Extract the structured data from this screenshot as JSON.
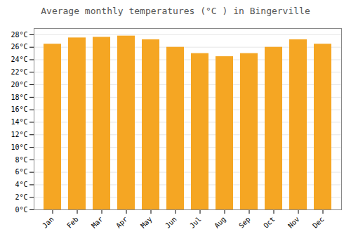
{
  "chart_data": {
    "type": "bar",
    "title": "Average monthly temperatures (°C ) in Bingerville",
    "categories": [
      "Jan",
      "Feb",
      "Mar",
      "Apr",
      "May",
      "Jun",
      "Jul",
      "Aug",
      "Sep",
      "Oct",
      "Nov",
      "Dec"
    ],
    "values": [
      26.5,
      27.5,
      27.6,
      27.8,
      27.2,
      26.0,
      25.0,
      24.5,
      25.0,
      26.0,
      27.2,
      26.5
    ],
    "color": "#F5A623",
    "ylim": [
      0,
      29
    ],
    "yticks": [
      {
        "value": 0,
        "label": "0°C"
      },
      {
        "value": 2,
        "label": "2°C"
      },
      {
        "value": 4,
        "label": "4°C"
      },
      {
        "value": 6,
        "label": "6°C"
      },
      {
        "value": 8,
        "label": "8°C"
      },
      {
        "value": 10,
        "label": "10°C"
      },
      {
        "value": 12,
        "label": "12°C"
      },
      {
        "value": 14,
        "label": "14°C"
      },
      {
        "value": 16,
        "label": "16°C"
      },
      {
        "value": 18,
        "label": "18°C"
      },
      {
        "value": 20,
        "label": "20°C"
      },
      {
        "value": 22,
        "label": "22°C"
      },
      {
        "value": 24,
        "label": "24°C"
      },
      {
        "value": 26,
        "label": "26°C"
      },
      {
        "value": 28,
        "label": "28°C"
      }
    ],
    "grid": true
  }
}
